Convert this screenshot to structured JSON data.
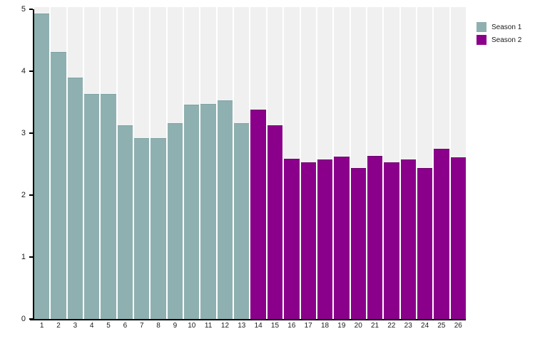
{
  "legend": {
    "items": [
      {
        "label": "Season 1",
        "color": "#8fb0b0"
      },
      {
        "label": "Season 2",
        "color": "#8b008b"
      }
    ]
  },
  "axes": {
    "y_tick_labels": [
      "0",
      "1",
      "2",
      "3",
      "4",
      "5"
    ],
    "x_tick_labels": [
      "1",
      "2",
      "3",
      "4",
      "5",
      "6",
      "7",
      "8",
      "9",
      "10",
      "11",
      "12",
      "13",
      "14",
      "15",
      "16",
      "17",
      "18",
      "19",
      "20",
      "21",
      "22",
      "23",
      "24",
      "25",
      "26"
    ]
  },
  "chart_data": {
    "type": "bar",
    "title": "",
    "xlabel": "",
    "ylabel": "",
    "ylim": [
      0,
      5
    ],
    "yticks": [
      0,
      1,
      2,
      3,
      4,
      5
    ],
    "grid": false,
    "legend_position": "top-right",
    "plot_column_background": "#f0f0f0",
    "categories": [
      "1",
      "2",
      "3",
      "4",
      "5",
      "6",
      "7",
      "8",
      "9",
      "10",
      "11",
      "12",
      "13",
      "14",
      "15",
      "16",
      "17",
      "18",
      "19",
      "20",
      "21",
      "22",
      "23",
      "24",
      "25",
      "26"
    ],
    "series": [
      {
        "name": "Season 1",
        "color": "#8fb0b0",
        "edge_color": "#7da2a2",
        "x": [
          1,
          2,
          3,
          4,
          5,
          6,
          7,
          8,
          9,
          10,
          11,
          12,
          13
        ],
        "values": [
          4.92,
          4.3,
          3.88,
          3.62,
          3.62,
          3.12,
          2.91,
          2.91,
          3.15,
          3.45,
          3.46,
          3.52,
          3.15
        ]
      },
      {
        "name": "Season 2",
        "color": "#8b008b",
        "edge_color": "#6b016b",
        "x": [
          14,
          15,
          16,
          17,
          18,
          19,
          20,
          21,
          22,
          23,
          24,
          25,
          26
        ],
        "values": [
          3.37,
          3.11,
          2.57,
          2.52,
          2.56,
          2.61,
          2.43,
          2.62,
          2.52,
          2.56,
          2.42,
          2.74,
          2.6
        ]
      }
    ]
  }
}
